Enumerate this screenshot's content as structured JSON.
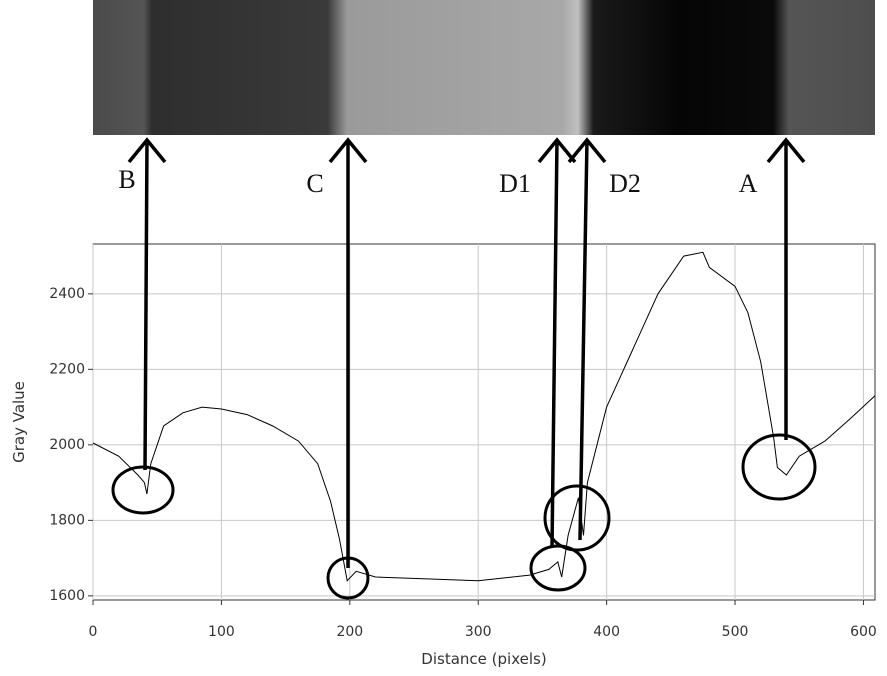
{
  "chart_data": {
    "type": "line",
    "xlabel": "Distance (pixels)",
    "ylabel": "Gray Value",
    "x": [
      0,
      20,
      35,
      40,
      42,
      45,
      55,
      70,
      85,
      100,
      120,
      140,
      160,
      175,
      185,
      192,
      198,
      205,
      220,
      260,
      300,
      340,
      355,
      362,
      365,
      370,
      378,
      382,
      385,
      400,
      420,
      440,
      460,
      475,
      480,
      500,
      510,
      520,
      530,
      533,
      540,
      550,
      570,
      590,
      609
    ],
    "values": [
      2005,
      1970,
      1920,
      1900,
      1870,
      1950,
      2050,
      2085,
      2100,
      2095,
      2080,
      2050,
      2010,
      1950,
      1850,
      1750,
      1640,
      1665,
      1650,
      1645,
      1640,
      1655,
      1670,
      1690,
      1650,
      1760,
      1860,
      1760,
      1900,
      2100,
      2250,
      2400,
      2500,
      2510,
      2470,
      2420,
      2350,
      2220,
      2020,
      1940,
      1920,
      1970,
      2010,
      2070,
      2130
    ],
    "color": "#000000",
    "xlim": [
      0,
      609
    ],
    "ylim": [
      1589,
      2532
    ],
    "xticks": [
      0,
      100,
      200,
      300,
      400,
      500,
      600
    ],
    "yticks": [
      1600,
      1800,
      2000,
      2200,
      2400
    ],
    "grid": true,
    "annotations": [
      "B",
      "C",
      "D1",
      "D2",
      "A"
    ]
  }
}
